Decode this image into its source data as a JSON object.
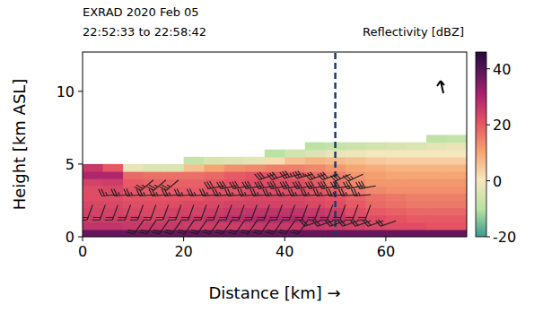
{
  "chart_data": {
    "type": "heatmap",
    "title": "EXRAD 2020 Feb 05",
    "subtitle": "22:52:33 to 22:58:42",
    "x_label": "Distance [km] →",
    "y_label": "Height [km ASL]",
    "xlim": [
      0,
      76
    ],
    "ylim": [
      0,
      12.7
    ],
    "xticks": [
      0,
      20,
      40,
      60
    ],
    "yticks": [
      0,
      5,
      10
    ],
    "colorbar": {
      "label": "Reflectivity [dBZ]",
      "lim": [
        -20,
        46
      ],
      "ticks": [
        -20,
        0,
        20,
        40
      ]
    },
    "cells": {
      "x_edges": [
        0,
        4,
        8,
        12,
        16,
        20,
        24,
        28,
        32,
        36,
        40,
        44,
        48,
        52,
        56,
        60,
        64,
        68,
        72,
        76
      ],
      "y_edges": [
        0,
        0.5,
        1,
        1.5,
        2,
        2.5,
        3,
        3.5,
        4,
        4.5,
        5,
        5.5,
        6,
        6.5,
        7
      ],
      "values": [
        [
          38,
          38,
          38,
          38,
          38,
          38,
          38,
          38,
          38,
          38,
          38,
          38,
          38,
          38,
          38,
          38,
          38,
          38,
          38
        ],
        [
          27,
          27,
          26,
          26,
          26,
          25,
          25,
          25,
          26,
          26,
          26,
          26,
          25,
          24,
          23,
          22,
          22,
          21,
          21
        ],
        [
          25,
          25,
          25,
          24,
          25,
          26,
          27,
          28,
          29,
          29,
          29,
          28,
          27,
          24,
          22,
          21,
          20,
          20,
          20
        ],
        [
          24,
          24,
          23,
          23,
          24,
          24,
          25,
          26,
          27,
          27,
          27,
          26,
          25,
          22,
          20,
          19,
          18,
          18,
          18
        ],
        [
          23,
          23,
          22,
          22,
          22,
          23,
          23,
          24,
          24,
          24,
          24,
          23,
          22,
          20,
          18,
          17,
          16,
          16,
          16
        ],
        [
          22,
          22,
          21,
          21,
          21,
          21,
          22,
          22,
          23,
          23,
          23,
          22,
          21,
          19,
          17,
          16,
          15,
          15,
          15
        ],
        [
          22,
          23,
          21,
          20,
          20,
          20,
          21,
          21,
          22,
          22,
          22,
          21,
          19,
          16,
          14,
          13,
          13,
          13,
          13
        ],
        [
          24,
          25,
          20,
          19,
          19,
          19,
          20,
          21,
          22,
          22,
          22,
          20,
          17,
          14,
          12,
          12,
          12,
          12,
          12
        ],
        [
          30,
          30,
          18,
          17,
          17,
          17,
          18,
          20,
          21,
          21,
          20,
          18,
          15,
          12,
          11,
          10,
          10,
          10,
          10
        ],
        [
          26,
          20,
          -2,
          -4,
          -4,
          6,
          10,
          13,
          14,
          15,
          15,
          14,
          12,
          10,
          9,
          8,
          8,
          8,
          8
        ],
        [
          null,
          null,
          null,
          null,
          null,
          -8,
          -5,
          -4,
          -3,
          2,
          6,
          8,
          7,
          6,
          5,
          4,
          4,
          4,
          4
        ],
        [
          null,
          null,
          null,
          null,
          null,
          null,
          null,
          null,
          null,
          -10,
          -6,
          -4,
          -2,
          -1,
          0,
          0,
          0,
          0,
          0
        ],
        [
          null,
          null,
          null,
          null,
          null,
          null,
          null,
          null,
          null,
          null,
          null,
          -10,
          -8,
          -7,
          -6,
          -5,
          -4,
          -3,
          -2
        ],
        [
          null,
          null,
          null,
          null,
          null,
          null,
          null,
          null,
          null,
          null,
          null,
          null,
          null,
          null,
          null,
          null,
          null,
          -9,
          -8
        ]
      ]
    },
    "reference_lines": [
      {
        "x": 50,
        "line_style": "dashed",
        "color": "#1b3a6b"
      }
    ],
    "barbs": [
      {
        "height": 4.3,
        "x": [
          38,
          40.5,
          43,
          45.5,
          48,
          50.5,
          53,
          55.5
        ],
        "speed": [
          30,
          30,
          35,
          35,
          30,
          30,
          30,
          25
        ],
        "direction": [
          250,
          250,
          255,
          255,
          250,
          250,
          245,
          245
        ]
      },
      {
        "height": 3.9,
        "x": [
          14,
          16.5,
          19
        ],
        "speed": [
          25,
          25,
          25
        ],
        "direction": [
          230,
          230,
          230
        ]
      },
      {
        "height": 3.5,
        "x": [
          28,
          30.5,
          33,
          35.5,
          38,
          40.5,
          43,
          45.5,
          48,
          50.5,
          53,
          55.5,
          58
        ],
        "speed": [
          30,
          30,
          30,
          30,
          30,
          30,
          30,
          30,
          30,
          30,
          30,
          30,
          30
        ],
        "direction": [
          260,
          260,
          260,
          260,
          260,
          260,
          260,
          260,
          260,
          260,
          260,
          260,
          260
        ]
      },
      {
        "height": 2.9,
        "x": [
          7,
          9.5,
          12,
          14.5,
          17,
          19.5,
          22,
          24.5,
          27,
          29.5,
          32,
          34.5,
          37,
          39.5,
          42,
          44.5,
          47,
          49.5,
          52,
          54.5,
          57
        ],
        "speed": [
          25,
          25,
          25,
          25,
          25,
          25,
          25,
          25,
          25,
          25,
          25,
          25,
          25,
          25,
          25,
          25,
          25,
          25,
          25,
          25,
          25
        ],
        "direction": [
          265,
          265,
          265,
          265,
          265,
          265,
          265,
          265,
          265,
          265,
          265,
          265,
          265,
          265,
          265,
          265,
          265,
          265,
          265,
          265,
          265
        ]
      },
      {
        "height": 2.2,
        "x": [
          2,
          4.5,
          7,
          9.5,
          12,
          14.5,
          17,
          19.5,
          22,
          24.5,
          27,
          29.5,
          32,
          34.5,
          37,
          39.5,
          42,
          44.5,
          47,
          49.5,
          52,
          54.5,
          57
        ],
        "speed": [
          20,
          20,
          20,
          20,
          20,
          20,
          20,
          20,
          20,
          20,
          20,
          20,
          20,
          20,
          20,
          20,
          20,
          20,
          20,
          20,
          20,
          20,
          20
        ],
        "direction": [
          200,
          200,
          200,
          200,
          200,
          200,
          200,
          200,
          200,
          200,
          200,
          200,
          200,
          200,
          200,
          200,
          200,
          200,
          200,
          200,
          200,
          200,
          200
        ]
      },
      {
        "height": 1.1,
        "x": [
          12,
          14.5,
          17,
          19.5,
          22,
          24.5,
          27,
          29.5,
          32,
          34.5,
          37,
          39.5,
          42,
          44.5,
          47,
          49.5,
          52,
          54.5,
          57,
          59.5,
          62
        ],
        "speed": [
          20,
          20,
          20,
          20,
          20,
          20,
          20,
          20,
          20,
          20,
          20,
          20,
          20,
          20,
          20,
          20,
          20,
          20,
          20,
          20,
          20
        ],
        "direction": [
          215,
          215,
          215,
          215,
          215,
          215,
          215,
          215,
          215,
          215,
          215,
          215,
          215,
          215,
          250,
          250,
          250,
          250,
          250,
          250,
          250
        ]
      }
    ]
  }
}
